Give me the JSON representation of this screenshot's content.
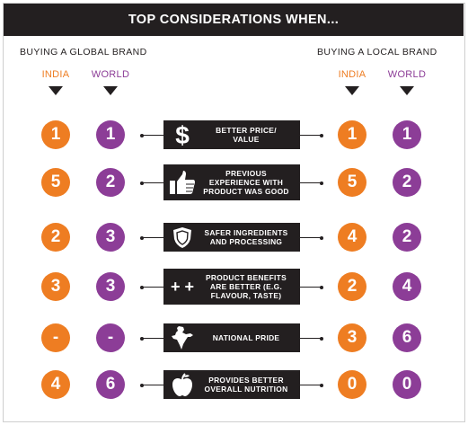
{
  "title": "TOP CONSIDERATIONS WHEN...",
  "global_heading": "BUYING A GLOBAL BRAND",
  "local_heading": "BUYING A LOCAL BRAND",
  "india_label": "INDIA",
  "world_label": "WORLD",
  "colors": {
    "india": "#ee7d22",
    "world": "#8c3d97",
    "dark": "#231f20"
  },
  "rows": [
    {
      "factor": "BETTER PRICE/\nVALUE",
      "icon": "dollar-icon",
      "global_india": "1",
      "global_world": "1",
      "local_india": "1",
      "local_world": "1"
    },
    {
      "factor": "PREVIOUS\nEXPERIENCE WITH\nPRODUCT WAS GOOD",
      "icon": "thumbs-up-icon",
      "global_india": "5",
      "global_world": "2",
      "local_india": "5",
      "local_world": "2"
    },
    {
      "factor": "SAFER INGREDIENTS\nAND PROCESSING",
      "icon": "shield-icon",
      "global_india": "2",
      "global_world": "3",
      "local_india": "4",
      "local_world": "2"
    },
    {
      "factor": "PRODUCT BENEFITS\nARE BETTER (E.G.\nFLAVOUR, TASTE)",
      "icon": "plus-plus-icon",
      "global_india": "3",
      "global_world": "3",
      "local_india": "2",
      "local_world": "4"
    },
    {
      "factor": "NATIONAL PRIDE",
      "icon": "india-map-icon",
      "global_india": "-",
      "global_world": "-",
      "local_india": "3",
      "local_world": "6"
    },
    {
      "factor": "PROVIDES BETTER\nOVERALL NUTRITION",
      "icon": "apple-icon",
      "global_india": "4",
      "global_world": "6",
      "local_india": "0",
      "local_world": "0"
    }
  ]
}
